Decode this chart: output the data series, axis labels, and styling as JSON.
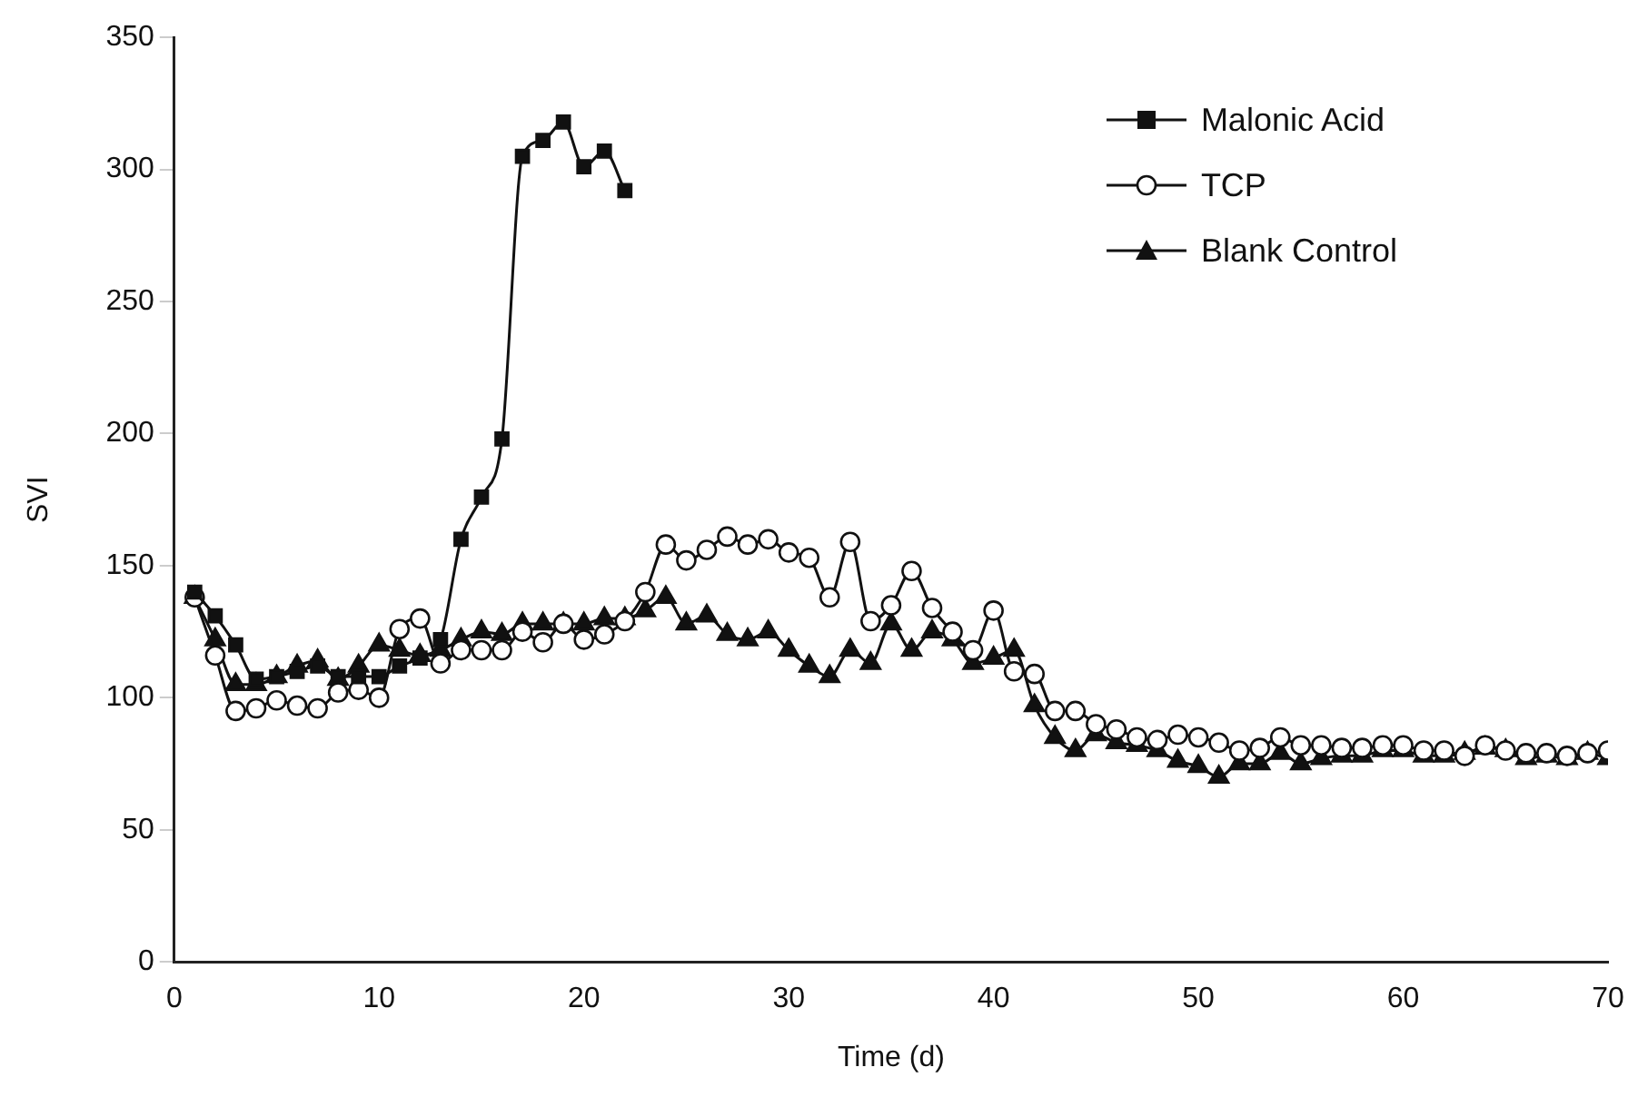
{
  "chart_data": {
    "type": "line",
    "xlabel": "Time (d)",
    "ylabel": "SVI",
    "xlim": [
      0,
      70
    ],
    "xticks": [
      0,
      10,
      20,
      30,
      40,
      50,
      60,
      70
    ],
    "ylim": [
      0,
      350
    ],
    "yticks": [
      0,
      50,
      100,
      150,
      200,
      250,
      300,
      350
    ],
    "grid": false,
    "legend": "top right",
    "line_style": "solid",
    "series": [
      {
        "name": "Malonic Acid",
        "color": "#111111",
        "marker": "square",
        "x": [
          1,
          2,
          3,
          4,
          5,
          6,
          7,
          8,
          9,
          10,
          11,
          12,
          13,
          14,
          15,
          16,
          17,
          18,
          19,
          20,
          21,
          22
        ],
        "values": [
          140,
          131,
          120,
          107,
          108,
          110,
          112,
          108,
          108,
          108,
          112,
          115,
          122,
          160,
          176,
          198,
          305,
          311,
          318,
          301,
          307,
          292
        ]
      },
      {
        "name": "TCP",
        "color": "#111111",
        "marker": "circle",
        "x": [
          1,
          2,
          3,
          4,
          5,
          6,
          7,
          8,
          9,
          10,
          11,
          12,
          13,
          14,
          15,
          16,
          17,
          18,
          19,
          20,
          21,
          22,
          23,
          24,
          25,
          26,
          27,
          28,
          29,
          30,
          31,
          32,
          33,
          34,
          35,
          36,
          37,
          38,
          39,
          40,
          41,
          42,
          43,
          44,
          45,
          46,
          47,
          48,
          49,
          50,
          51,
          52,
          53,
          54,
          55,
          56,
          57,
          58,
          59,
          60,
          61,
          62,
          63,
          64,
          65,
          66,
          67,
          68,
          69,
          70
        ],
        "values": [
          138,
          116,
          95,
          96,
          99,
          97,
          96,
          102,
          103,
          100,
          126,
          130,
          113,
          118,
          118,
          118,
          125,
          121,
          128,
          122,
          124,
          129,
          140,
          158,
          152,
          156,
          161,
          158,
          160,
          155,
          153,
          138,
          159,
          129,
          135,
          148,
          134,
          125,
          118,
          133,
          110,
          109,
          95,
          95,
          90,
          88,
          85,
          84,
          86,
          85,
          83,
          80,
          81,
          85,
          82,
          82,
          81,
          81,
          82,
          82,
          80,
          80,
          78,
          82,
          80,
          79,
          79,
          78,
          79,
          80
        ]
      },
      {
        "name": "Blank Control",
        "color": "#111111",
        "marker": "triangle",
        "x": [
          1,
          2,
          3,
          4,
          5,
          6,
          7,
          8,
          9,
          10,
          11,
          12,
          13,
          14,
          15,
          16,
          17,
          18,
          19,
          20,
          21,
          22,
          23,
          24,
          25,
          26,
          27,
          28,
          29,
          30,
          31,
          32,
          33,
          34,
          35,
          36,
          37,
          38,
          39,
          40,
          41,
          42,
          43,
          44,
          45,
          46,
          47,
          48,
          49,
          50,
          51,
          52,
          53,
          54,
          55,
          56,
          57,
          58,
          59,
          60,
          61,
          62,
          63,
          64,
          65,
          66,
          67,
          68,
          69,
          70
        ],
        "values": [
          138,
          122,
          105,
          105,
          108,
          112,
          114,
          107,
          112,
          120,
          118,
          116,
          118,
          122,
          125,
          124,
          128,
          128,
          128,
          128,
          130,
          130,
          133,
          138,
          128,
          131,
          124,
          122,
          125,
          118,
          112,
          108,
          118,
          113,
          128,
          118,
          125,
          122,
          113,
          115,
          118,
          97,
          85,
          80,
          86,
          83,
          82,
          80,
          76,
          74,
          70,
          75,
          75,
          79,
          75,
          77,
          78,
          78,
          80,
          80,
          78,
          78,
          79,
          81,
          80,
          77,
          78,
          77,
          79,
          77
        ]
      }
    ]
  }
}
